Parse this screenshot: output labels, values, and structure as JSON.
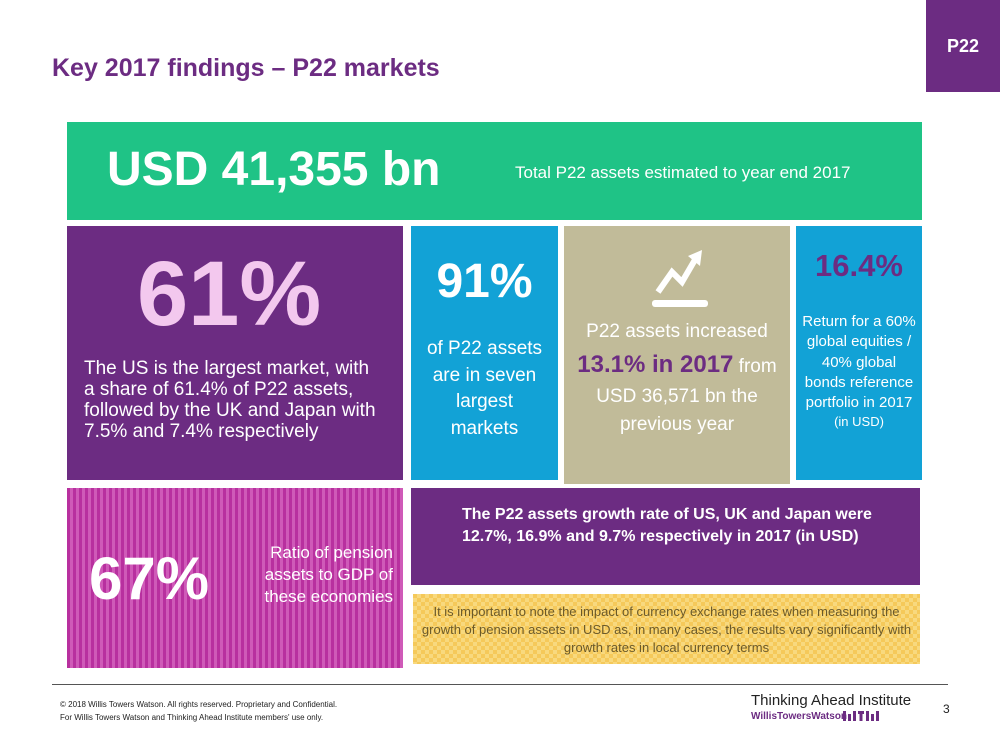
{
  "tag": "P22",
  "title": "Key 2017 findings – P22 markets",
  "total": {
    "value": "USD 41,355 bn",
    "desc": "Total P22 assets estimated to year end 2017"
  },
  "us_share": {
    "value": "61%",
    "desc": "The US is the largest market, with a share of 61.4% of P22 assets, followed by the UK and Japan with 7.5% and 7.4% respectively"
  },
  "largest_markets": {
    "value": "91%",
    "desc": "of P22 assets are in seven largest markets"
  },
  "growth": {
    "icon": "growth-chart-icon",
    "pre": "P22 assets increased ",
    "highlight": "13.1% in 2017",
    "post": " from USD 36,571 bn the previous year"
  },
  "return": {
    "value": "16.4%",
    "desc": "Return for a 60% global equities / 40% global bonds reference portfolio in 2017",
    "unit": "(in USD)"
  },
  "gdp": {
    "value": "67%",
    "desc": "Ratio of pension assets to GDP of these economies"
  },
  "growth_rates": "The P22 assets growth rate of US, UK and Japan were 12.7%, 16.9% and 9.7% respectively in 2017 (in USD)",
  "note": "It is important to note the impact of currency exchange rates when measuring the growth of pension assets in USD as, in many cases, the results vary significantly with growth rates in local currency terms",
  "footer": {
    "copyright_line1": "© 2018 Willis Towers Watson. All rights reserved. Proprietary and Confidential.",
    "copyright_line2": "For Willis Towers Watson and Thinking Ahead Institute members' use only.",
    "institute": "Thinking Ahead Institute",
    "company": "WillisTowersWatson",
    "page": "3"
  },
  "colors": {
    "purple": "#6c2c82",
    "teal": "#1fc386",
    "blue": "#12a2d6",
    "tan": "#c1bb99",
    "magenta": "#b8309f",
    "gold": "#f5c95a"
  }
}
